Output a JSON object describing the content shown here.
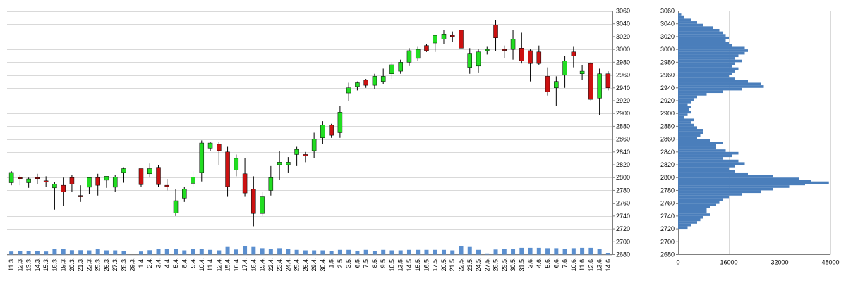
{
  "chart_data": [
    {
      "type": "candlestick",
      "ylim": [
        2680,
        3060
      ],
      "yticks": [
        2680,
        2700,
        2720,
        2740,
        2760,
        2780,
        2800,
        2820,
        2840,
        2860,
        2880,
        2900,
        2920,
        2940,
        2960,
        2980,
        3000,
        3020,
        3040,
        3060
      ],
      "grid": true,
      "colors": {
        "up": "#22dd22",
        "down": "#cc1111",
        "wick": "#000000",
        "volume": "#5b8fcf",
        "grid": "#d9d9d9"
      },
      "volume_max": 100,
      "candles": [
        {
          "x": "11.3.",
          "o": 2792,
          "h": 2810,
          "l": 2788,
          "c": 2808,
          "v": 18
        },
        {
          "x": "12.3.",
          "o": 2800,
          "h": 2804,
          "l": 2788,
          "c": 2799,
          "v": 22
        },
        {
          "x": "13.3.",
          "o": 2792,
          "h": 2800,
          "l": 2784,
          "c": 2798,
          "v": 20
        },
        {
          "x": "14.3.",
          "o": 2800,
          "h": 2806,
          "l": 2790,
          "c": 2799,
          "v": 20
        },
        {
          "x": "15.3.",
          "o": 2795,
          "h": 2802,
          "l": 2785,
          "c": 2794,
          "v": 18
        },
        {
          "x": "18.3.",
          "o": 2784,
          "h": 2793,
          "l": 2750,
          "c": 2790,
          "v": 33
        },
        {
          "x": "19.3.",
          "o": 2788,
          "h": 2800,
          "l": 2756,
          "c": 2778,
          "v": 33
        },
        {
          "x": "20.3.",
          "o": 2800,
          "h": 2804,
          "l": 2778,
          "c": 2790,
          "v": 26
        },
        {
          "x": "21.3.",
          "o": 2772,
          "h": 2788,
          "l": 2762,
          "c": 2770,
          "v": 26
        },
        {
          "x": "22.3.",
          "o": 2785,
          "h": 2800,
          "l": 2774,
          "c": 2800,
          "v": 25
        },
        {
          "x": "25.3.",
          "o": 2800,
          "h": 2806,
          "l": 2772,
          "c": 2788,
          "v": 33
        },
        {
          "x": "26.3.",
          "o": 2796,
          "h": 2802,
          "l": 2784,
          "c": 2802,
          "v": 25
        },
        {
          "x": "27.3.",
          "o": 2785,
          "h": 2804,
          "l": 2778,
          "c": 2801,
          "v": 25
        },
        {
          "x": "28.3.",
          "o": 2808,
          "h": 2816,
          "l": 2792,
          "c": 2814,
          "v": 20
        },
        {
          "x": "29.3.",
          "o": null,
          "h": null,
          "l": null,
          "c": null,
          "v": 0
        },
        {
          "x": "1.4.",
          "o": 2814,
          "h": 2814,
          "l": 2786,
          "c": 2789,
          "v": 18
        },
        {
          "x": "2.4.",
          "o": 2806,
          "h": 2822,
          "l": 2800,
          "c": 2814,
          "v": 26
        },
        {
          "x": "3.4.",
          "o": 2816,
          "h": 2820,
          "l": 2786,
          "c": 2789,
          "v": 35
        },
        {
          "x": "4.4.",
          "o": 2788,
          "h": 2798,
          "l": 2780,
          "c": 2786,
          "v": 33
        },
        {
          "x": "5.4.",
          "o": 2745,
          "h": 2782,
          "l": 2740,
          "c": 2764,
          "v": 35
        },
        {
          "x": "8.4.",
          "o": 2768,
          "h": 2786,
          "l": 2762,
          "c": 2782,
          "v": 25
        },
        {
          "x": "9.4.",
          "o": 2791,
          "h": 2810,
          "l": 2786,
          "c": 2801,
          "v": 32
        },
        {
          "x": "10.4.",
          "o": 2808,
          "h": 2858,
          "l": 2794,
          "c": 2854,
          "v": 35
        },
        {
          "x": "11.4.",
          "o": 2846,
          "h": 2856,
          "l": 2842,
          "c": 2854,
          "v": 28
        },
        {
          "x": "12.4.",
          "o": 2852,
          "h": 2856,
          "l": 2820,
          "c": 2842,
          "v": 25
        },
        {
          "x": "15.4.",
          "o": 2840,
          "h": 2848,
          "l": 2770,
          "c": 2786,
          "v": 45
        },
        {
          "x": "16.4.",
          "o": 2812,
          "h": 2836,
          "l": 2802,
          "c": 2830,
          "v": 30
        },
        {
          "x": "17.4.",
          "o": 2806,
          "h": 2830,
          "l": 2770,
          "c": 2776,
          "v": 52
        },
        {
          "x": "18.4.",
          "o": 2782,
          "h": 2802,
          "l": 2724,
          "c": 2744,
          "v": 45
        },
        {
          "x": "19.4.",
          "o": 2744,
          "h": 2778,
          "l": 2740,
          "c": 2770,
          "v": 38
        },
        {
          "x": "22.4.",
          "o": 2780,
          "h": 2818,
          "l": 2772,
          "c": 2800,
          "v": 35
        },
        {
          "x": "23.4.",
          "o": 2820,
          "h": 2842,
          "l": 2796,
          "c": 2824,
          "v": 38
        },
        {
          "x": "24.4.",
          "o": 2820,
          "h": 2832,
          "l": 2808,
          "c": 2824,
          "v": 35
        },
        {
          "x": "25.4.",
          "o": 2836,
          "h": 2848,
          "l": 2818,
          "c": 2844,
          "v": 28
        },
        {
          "x": "26.4.",
          "o": 2836,
          "h": 2840,
          "l": 2824,
          "c": 2834,
          "v": 25
        },
        {
          "x": "29.4.",
          "o": 2842,
          "h": 2870,
          "l": 2830,
          "c": 2860,
          "v": 25
        },
        {
          "x": "30.4.",
          "o": 2862,
          "h": 2888,
          "l": 2852,
          "c": 2882,
          "v": 25
        },
        {
          "x": "1.5.",
          "o": 2882,
          "h": 2884,
          "l": 2862,
          "c": 2866,
          "v": 20
        },
        {
          "x": "2.5.",
          "o": 2870,
          "h": 2912,
          "l": 2862,
          "c": 2902,
          "v": 28
        },
        {
          "x": "3.5.",
          "o": 2932,
          "h": 2948,
          "l": 2920,
          "c": 2940,
          "v": 28
        },
        {
          "x": "6.5.",
          "o": 2942,
          "h": 2950,
          "l": 2936,
          "c": 2948,
          "v": 23
        },
        {
          "x": "7.5.",
          "o": 2952,
          "h": 2954,
          "l": 2940,
          "c": 2944,
          "v": 28
        },
        {
          "x": "8.5.",
          "o": 2944,
          "h": 2962,
          "l": 2938,
          "c": 2958,
          "v": 22
        },
        {
          "x": "9.5.",
          "o": 2950,
          "h": 2970,
          "l": 2946,
          "c": 2958,
          "v": 28
        },
        {
          "x": "10.5.",
          "o": 2962,
          "h": 2980,
          "l": 2954,
          "c": 2976,
          "v": 25
        },
        {
          "x": "13.5.",
          "o": 2966,
          "h": 2984,
          "l": 2962,
          "c": 2980,
          "v": 25
        },
        {
          "x": "14.5.",
          "o": 2980,
          "h": 3002,
          "l": 2974,
          "c": 2998,
          "v": 28
        },
        {
          "x": "15.5.",
          "o": 2986,
          "h": 3004,
          "l": 2982,
          "c": 3000,
          "v": 28
        },
        {
          "x": "16.5.",
          "o": 3006,
          "h": 3008,
          "l": 2996,
          "c": 2998,
          "v": 28
        },
        {
          "x": "17.5.",
          "o": 3010,
          "h": 3022,
          "l": 2996,
          "c": 3022,
          "v": 28
        },
        {
          "x": "20.5.",
          "o": 3016,
          "h": 3030,
          "l": 3008,
          "c": 3024,
          "v": 28
        },
        {
          "x": "21.5.",
          "o": 3022,
          "h": 3028,
          "l": 3012,
          "c": 3020,
          "v": 25
        },
        {
          "x": "22.5.",
          "o": 3030,
          "h": 3054,
          "l": 2990,
          "c": 3002,
          "v": 52
        },
        {
          "x": "23.5.",
          "o": 2972,
          "h": 3002,
          "l": 2962,
          "c": 2994,
          "v": 45
        },
        {
          "x": "24.5.",
          "o": 2974,
          "h": 3000,
          "l": 2964,
          "c": 2996,
          "v": 28
        },
        {
          "x": "27.5.",
          "o": 2998,
          "h": 3004,
          "l": 2992,
          "c": 3000,
          "v": 3
        },
        {
          "x": "28.5.",
          "o": 3038,
          "h": 3046,
          "l": 2998,
          "c": 3018,
          "v": 30
        },
        {
          "x": "29.5.",
          "o": 3000,
          "h": 3006,
          "l": 2986,
          "c": 2999,
          "v": 33
        },
        {
          "x": "30.5.",
          "o": 3000,
          "h": 3030,
          "l": 2984,
          "c": 3016,
          "v": 35
        },
        {
          "x": "31.5.",
          "o": 3002,
          "h": 3026,
          "l": 2978,
          "c": 2982,
          "v": 40
        },
        {
          "x": "3.6.",
          "o": 2998,
          "h": 3000,
          "l": 2950,
          "c": 2978,
          "v": 40
        },
        {
          "x": "4.6.",
          "o": 2996,
          "h": 3006,
          "l": 2976,
          "c": 2978,
          "v": 40
        },
        {
          "x": "5.6.",
          "o": 2958,
          "h": 2972,
          "l": 2928,
          "c": 2934,
          "v": 38
        },
        {
          "x": "6.6.",
          "o": 2940,
          "h": 2958,
          "l": 2912,
          "c": 2950,
          "v": 38
        },
        {
          "x": "7.6.",
          "o": 2960,
          "h": 2990,
          "l": 2940,
          "c": 2982,
          "v": 35
        },
        {
          "x": "10.6.",
          "o": 2996,
          "h": 3004,
          "l": 2972,
          "c": 2990,
          "v": 38
        },
        {
          "x": "11.6.",
          "o": 2962,
          "h": 2976,
          "l": 2952,
          "c": 2966,
          "v": 40
        },
        {
          "x": "12.6.",
          "o": 2978,
          "h": 2980,
          "l": 2920,
          "c": 2922,
          "v": 40
        },
        {
          "x": "13.6.",
          "o": 2924,
          "h": 2970,
          "l": 2898,
          "c": 2962,
          "v": 33
        },
        {
          "x": "14.6.",
          "o": 2962,
          "h": 2966,
          "l": 2936,
          "c": 2940,
          "v": 8
        }
      ]
    },
    {
      "type": "horizontal_bar",
      "subtype": "volume_profile",
      "ylim": [
        2680,
        3060
      ],
      "yticks": [
        2680,
        2700,
        2720,
        2740,
        2760,
        2780,
        2800,
        2820,
        2840,
        2860,
        2880,
        2900,
        2920,
        2940,
        2960,
        2980,
        3000,
        3020,
        3040,
        3060
      ],
      "xlim": [
        0,
        48000
      ],
      "xticks": [
        "0",
        "16000",
        "32000",
        "48000"
      ],
      "grid": true,
      "color": "#4a7ebb",
      "bin_size": 2,
      "profile": [
        {
          "price": 2720,
          "value": 3000
        },
        {
          "price": 2724,
          "value": 4000
        },
        {
          "price": 2728,
          "value": 6000
        },
        {
          "price": 2732,
          "value": 7000
        },
        {
          "price": 2736,
          "value": 8000
        },
        {
          "price": 2740,
          "value": 10000
        },
        {
          "price": 2744,
          "value": 9000
        },
        {
          "price": 2748,
          "value": 9000
        },
        {
          "price": 2752,
          "value": 10000
        },
        {
          "price": 2756,
          "value": 12000
        },
        {
          "price": 2760,
          "value": 13000
        },
        {
          "price": 2764,
          "value": 14000
        },
        {
          "price": 2768,
          "value": 16000
        },
        {
          "price": 2772,
          "value": 20000
        },
        {
          "price": 2776,
          "value": 26000
        },
        {
          "price": 2780,
          "value": 30000
        },
        {
          "price": 2784,
          "value": 35000
        },
        {
          "price": 2788,
          "value": 40000
        },
        {
          "price": 2790,
          "value": 47500
        },
        {
          "price": 2792,
          "value": 42000
        },
        {
          "price": 2796,
          "value": 38000
        },
        {
          "price": 2800,
          "value": 30000
        },
        {
          "price": 2804,
          "value": 22000
        },
        {
          "price": 2808,
          "value": 18000
        },
        {
          "price": 2812,
          "value": 16000
        },
        {
          "price": 2816,
          "value": 18000
        },
        {
          "price": 2820,
          "value": 21000
        },
        {
          "price": 2824,
          "value": 19000
        },
        {
          "price": 2828,
          "value": 14000
        },
        {
          "price": 2832,
          "value": 17000
        },
        {
          "price": 2836,
          "value": 19000
        },
        {
          "price": 2840,
          "value": 15000
        },
        {
          "price": 2844,
          "value": 12000
        },
        {
          "price": 2848,
          "value": 12000
        },
        {
          "price": 2852,
          "value": 14000
        },
        {
          "price": 2856,
          "value": 10000
        },
        {
          "price": 2860,
          "value": 6000
        },
        {
          "price": 2864,
          "value": 7000
        },
        {
          "price": 2868,
          "value": 8000
        },
        {
          "price": 2872,
          "value": 8000
        },
        {
          "price": 2876,
          "value": 6000
        },
        {
          "price": 2880,
          "value": 5000
        },
        {
          "price": 2884,
          "value": 4000
        },
        {
          "price": 2888,
          "value": 5000
        },
        {
          "price": 2892,
          "value": 2000
        },
        {
          "price": 2896,
          "value": 3000
        },
        {
          "price": 2900,
          "value": 4000
        },
        {
          "price": 2904,
          "value": 3500
        },
        {
          "price": 2908,
          "value": 4000
        },
        {
          "price": 2912,
          "value": 3000
        },
        {
          "price": 2916,
          "value": 4000
        },
        {
          "price": 2920,
          "value": 5000
        },
        {
          "price": 2924,
          "value": 6000
        },
        {
          "price": 2928,
          "value": 9000
        },
        {
          "price": 2932,
          "value": 14000
        },
        {
          "price": 2936,
          "value": 20000
        },
        {
          "price": 2940,
          "value": 27000
        },
        {
          "price": 2944,
          "value": 26000
        },
        {
          "price": 2948,
          "value": 22000
        },
        {
          "price": 2952,
          "value": 18000
        },
        {
          "price": 2956,
          "value": 16000
        },
        {
          "price": 2960,
          "value": 17000
        },
        {
          "price": 2964,
          "value": 18000
        },
        {
          "price": 2968,
          "value": 19000
        },
        {
          "price": 2972,
          "value": 17000
        },
        {
          "price": 2976,
          "value": 18000
        },
        {
          "price": 2980,
          "value": 20000
        },
        {
          "price": 2984,
          "value": 18000
        },
        {
          "price": 2988,
          "value": 19000
        },
        {
          "price": 2992,
          "value": 21000
        },
        {
          "price": 2996,
          "value": 22000
        },
        {
          "price": 3000,
          "value": 21000
        },
        {
          "price": 3004,
          "value": 17000
        },
        {
          "price": 3008,
          "value": 16000
        },
        {
          "price": 3012,
          "value": 15000
        },
        {
          "price": 3016,
          "value": 16000
        },
        {
          "price": 3020,
          "value": 15000
        },
        {
          "price": 3024,
          "value": 14000
        },
        {
          "price": 3028,
          "value": 13000
        },
        {
          "price": 3032,
          "value": 11000
        },
        {
          "price": 3036,
          "value": 8000
        },
        {
          "price": 3040,
          "value": 6000
        },
        {
          "price": 3044,
          "value": 4000
        },
        {
          "price": 3048,
          "value": 2000
        },
        {
          "price": 3052,
          "value": 1000
        }
      ]
    }
  ]
}
